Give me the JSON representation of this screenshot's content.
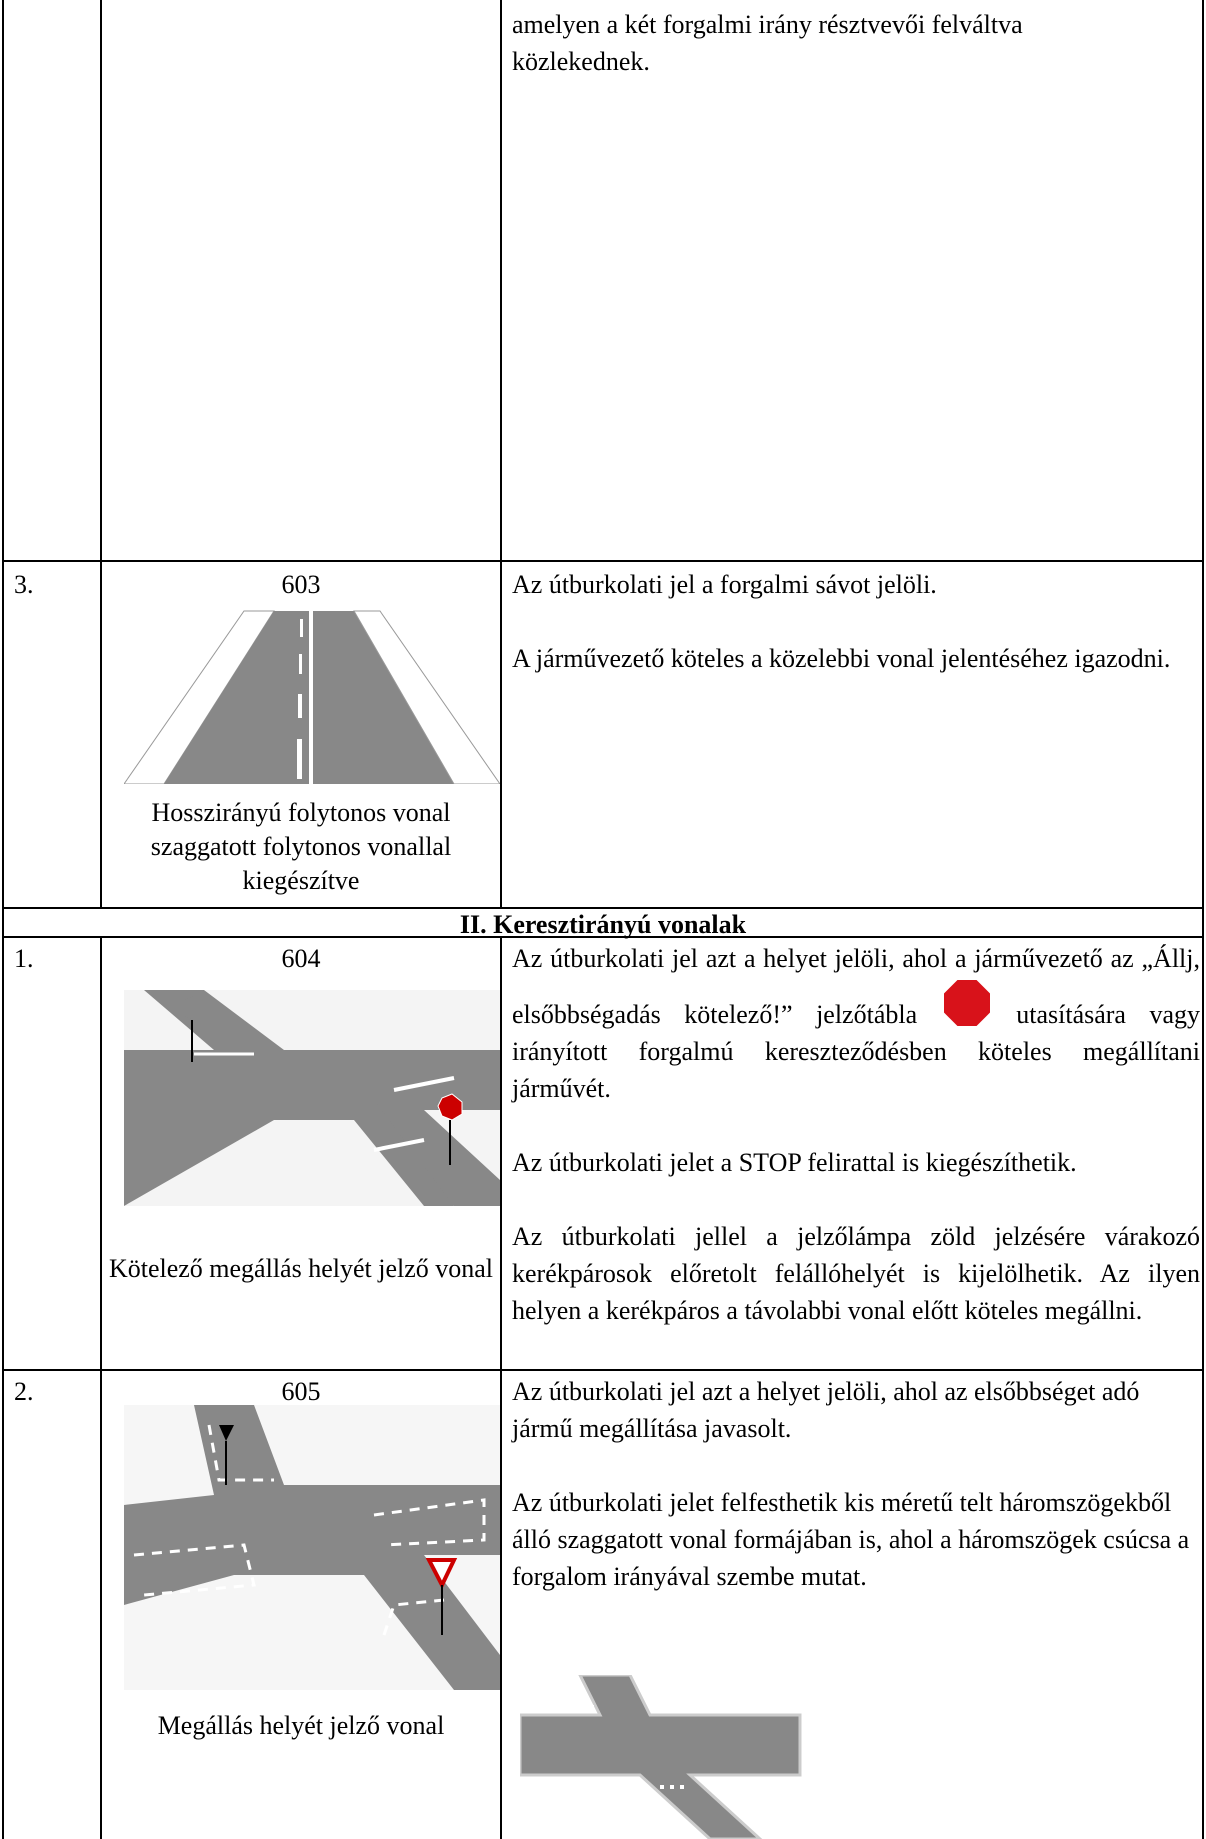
{
  "table": {
    "continuation": {
      "text": "amelyen a két forgalmi irány résztvevői felváltva közlekednek."
    },
    "row_603": {
      "number": "3.",
      "code": "603",
      "caption": "Hosszirányú folytonos vonal szaggatott folytonos vonallal kiegészítve",
      "paragraphs": [
        "Az útburkolati jel a forgalmi sávot jelöli.",
        "A járművezető köteles a közelebbi vonal jelentéséhez igazodni."
      ]
    },
    "section": "II. Keresztirányú vonalak",
    "row_604": {
      "number": "1.",
      "code": "604",
      "caption": "Kötelező megállás helyét jelző vonal",
      "paragraph_1": {
        "before": "Az útburkolati jel azt a helyet jelöli, ahol a járművezető az „Állj, elsőbbségadás kötelező!” jelzőtábla",
        "after": "utasítására vagy irányított forgalmú kereszteződésben köteles megállítani járművét."
      },
      "paragraphs": [
        "Az útburkolati jelet a STOP felirattal is kiegészíthetik.",
        "Az útburkolati jellel a jelzőlámpa zöld jelzésére várakozó kerékpárosok előretolt felállóhelyét is kijelölhetik. Az ilyen helyen a kerékpáros a távolabbi vonal előtt köteles megállni."
      ]
    },
    "row_605": {
      "number": "2.",
      "code": "605",
      "caption": "Megállás helyét jelző vonal",
      "paragraphs": [
        "Az útburkolati jel azt a helyet jelöli, ahol az elsőbbséget adó jármű megállítása javasolt.",
        "Az útburkolati jelet felfesthetik kis méretű telt háromszögekből álló szaggatott vonal formájában is, ahol a háromszögek csúcsa a forgalom irányával szembe mutat."
      ]
    }
  }
}
